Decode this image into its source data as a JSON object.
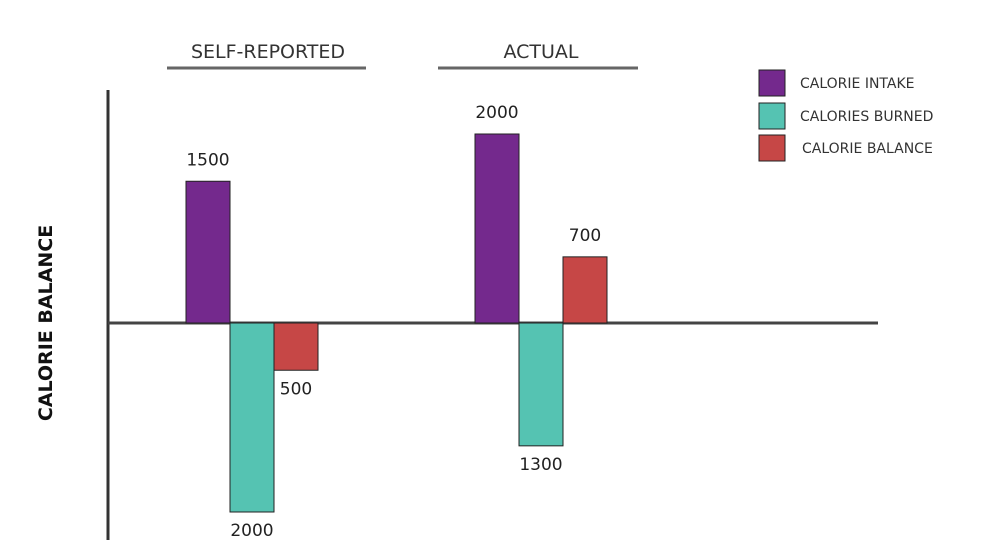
{
  "chart_data": {
    "type": "bar",
    "ylabel": "CALORIE BALANCE",
    "groups": [
      {
        "title": "SELF-REPORTED",
        "bars": [
          {
            "series": "CALORIE INTAKE",
            "value": 1500,
            "label": "1500"
          },
          {
            "series": "CALORIES BURNED",
            "value": -2000,
            "label": "2000"
          },
          {
            "series": "CALORIE BALANCE",
            "value": -500,
            "label": "500"
          }
        ]
      },
      {
        "title": "ACTUAL",
        "bars": [
          {
            "series": "CALORIE INTAKE",
            "value": 2000,
            "label": "2000"
          },
          {
            "series": "CALORIES BURNED",
            "value": -1300,
            "label": "1300"
          },
          {
            "series": "CALORIE BALANCE",
            "value": 700,
            "label": "700"
          }
        ]
      }
    ],
    "series": [
      {
        "name": "CALORIE INTAKE",
        "color": "#74298d"
      },
      {
        "name": "CALORIES BURNED",
        "color": "#55c3b2"
      },
      {
        "name": "CALORIE BALANCE",
        "color": "#c64746"
      }
    ],
    "legend_position": "top-right",
    "grid": false
  }
}
